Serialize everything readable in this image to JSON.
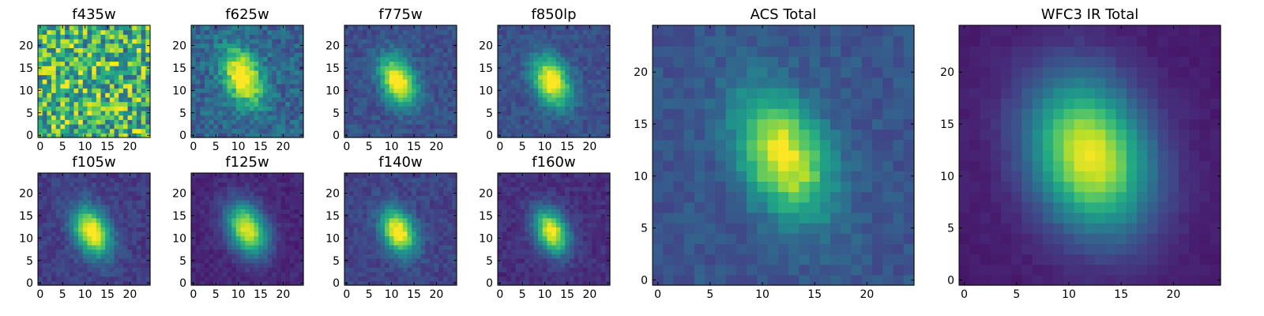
{
  "chart_data": [
    {
      "type": "heatmap",
      "title": "f435w",
      "colormap": "viridis",
      "grid_size": 25,
      "xlim": [
        0,
        24
      ],
      "ylim": [
        0,
        24
      ],
      "xticks": [
        0,
        5,
        10,
        15,
        20
      ],
      "yticks": [
        0,
        5,
        10,
        15,
        20
      ],
      "source": {
        "center": [
          12,
          12
        ],
        "peak": 0.05,
        "background": 0.65,
        "noise": 0.35,
        "sigma_major": 3.6,
        "sigma_minor": 2.4,
        "angle_deg": 25,
        "vmin": 0.0,
        "vmax": 1.0
      }
    },
    {
      "type": "heatmap",
      "title": "f625w",
      "colormap": "viridis",
      "grid_size": 25,
      "xlim": [
        0,
        24
      ],
      "ylim": [
        0,
        24
      ],
      "xticks": [
        0,
        5,
        10,
        15,
        20
      ],
      "yticks": [
        0,
        5,
        10,
        15,
        20
      ],
      "source": {
        "center": [
          11,
          13
        ],
        "peak": 0.85,
        "background": 0.35,
        "noise": 0.14,
        "sigma_major": 4.5,
        "sigma_minor": 2.8,
        "angle_deg": 25,
        "vmin": 0.0,
        "vmax": 1.1
      }
    },
    {
      "type": "heatmap",
      "title": "f775w",
      "colormap": "viridis",
      "grid_size": 25,
      "xlim": [
        0,
        24
      ],
      "ylim": [
        0,
        24
      ],
      "xticks": [
        0,
        5,
        10,
        15,
        20
      ],
      "yticks": [
        0,
        5,
        10,
        15,
        20
      ],
      "source": {
        "center": [
          11.5,
          12
        ],
        "peak": 0.95,
        "background": 0.28,
        "noise": 0.09,
        "sigma_major": 4.0,
        "sigma_minor": 2.5,
        "angle_deg": 25,
        "vmin": 0.0,
        "vmax": 1.15
      }
    },
    {
      "type": "heatmap",
      "title": "f850lp",
      "colormap": "viridis",
      "grid_size": 25,
      "xlim": [
        0,
        24
      ],
      "ylim": [
        0,
        24
      ],
      "xticks": [
        0,
        5,
        10,
        15,
        20
      ],
      "yticks": [
        0,
        5,
        10,
        15,
        20
      ],
      "source": {
        "center": [
          11.5,
          12
        ],
        "peak": 0.95,
        "background": 0.28,
        "noise": 0.08,
        "sigma_major": 4.0,
        "sigma_minor": 2.6,
        "angle_deg": 25,
        "vmin": 0.0,
        "vmax": 1.15
      }
    },
    {
      "type": "heatmap",
      "title": "f105w",
      "colormap": "viridis",
      "grid_size": 25,
      "xlim": [
        0,
        24
      ],
      "ylim": [
        0,
        24
      ],
      "xticks": [
        0,
        5,
        10,
        15,
        20
      ],
      "yticks": [
        0,
        5,
        10,
        15,
        20
      ],
      "source": {
        "center": [
          11.5,
          11.5
        ],
        "peak": 0.95,
        "background": 0.2,
        "noise": 0.07,
        "sigma_major": 4.0,
        "sigma_minor": 2.6,
        "angle_deg": 25,
        "vmin": 0.0,
        "vmax": 1.1
      }
    },
    {
      "type": "heatmap",
      "title": "f125w",
      "colormap": "viridis",
      "grid_size": 25,
      "xlim": [
        0,
        24
      ],
      "ylim": [
        0,
        24
      ],
      "xticks": [
        0,
        5,
        10,
        15,
        20
      ],
      "yticks": [
        0,
        5,
        10,
        15,
        20
      ],
      "source": {
        "center": [
          12,
          12
        ],
        "peak": 0.95,
        "background": 0.12,
        "noise": 0.05,
        "sigma_major": 4.2,
        "sigma_minor": 2.8,
        "angle_deg": 25,
        "vmin": 0.0,
        "vmax": 1.1
      }
    },
    {
      "type": "heatmap",
      "title": "f140w",
      "colormap": "viridis",
      "grid_size": 25,
      "xlim": [
        0,
        24
      ],
      "ylim": [
        0,
        24
      ],
      "xticks": [
        0,
        5,
        10,
        15,
        20
      ],
      "yticks": [
        0,
        5,
        10,
        15,
        20
      ],
      "source": {
        "center": [
          11.5,
          11.5
        ],
        "peak": 0.95,
        "background": 0.22,
        "noise": 0.07,
        "sigma_major": 3.6,
        "sigma_minor": 2.4,
        "angle_deg": 25,
        "vmin": 0.0,
        "vmax": 1.1
      }
    },
    {
      "type": "heatmap",
      "title": "f160w",
      "colormap": "viridis",
      "grid_size": 25,
      "xlim": [
        0,
        24
      ],
      "ylim": [
        0,
        24
      ],
      "xticks": [
        0,
        5,
        10,
        15,
        20
      ],
      "yticks": [
        0,
        5,
        10,
        15,
        20
      ],
      "source": {
        "center": [
          11.5,
          11.5
        ],
        "peak": 0.95,
        "background": 0.15,
        "noise": 0.06,
        "sigma_major": 3.6,
        "sigma_minor": 2.4,
        "angle_deg": 25,
        "vmin": 0.0,
        "vmax": 1.1
      }
    },
    {
      "type": "heatmap",
      "title": "ACS Total",
      "colormap": "viridis",
      "grid_size": 25,
      "xlim": [
        0,
        24
      ],
      "ylim": [
        0,
        24
      ],
      "xticks": [
        0,
        5,
        10,
        15,
        20
      ],
      "yticks": [
        0,
        5,
        10,
        15,
        20
      ],
      "source": {
        "center": [
          12,
          12
        ],
        "peak": 0.85,
        "background": 0.3,
        "noise": 0.07,
        "sigma_major": 4.4,
        "sigma_minor": 2.7,
        "angle_deg": 25,
        "vmin": 0.0,
        "vmax": 1.15
      }
    },
    {
      "type": "heatmap",
      "title": "WFC3 IR Total",
      "colormap": "viridis",
      "grid_size": 25,
      "xlim": [
        0,
        24
      ],
      "ylim": [
        0,
        24
      ],
      "xticks": [
        0,
        5,
        10,
        15,
        20
      ],
      "yticks": [
        0,
        5,
        10,
        15,
        20
      ],
      "source": {
        "center": [
          12,
          12
        ],
        "peak": 0.95,
        "background": 0.08,
        "noise": 0.02,
        "sigma_major": 5.2,
        "sigma_minor": 3.8,
        "angle_deg": 20,
        "vmin": 0.0,
        "vmax": 1.05
      }
    }
  ]
}
